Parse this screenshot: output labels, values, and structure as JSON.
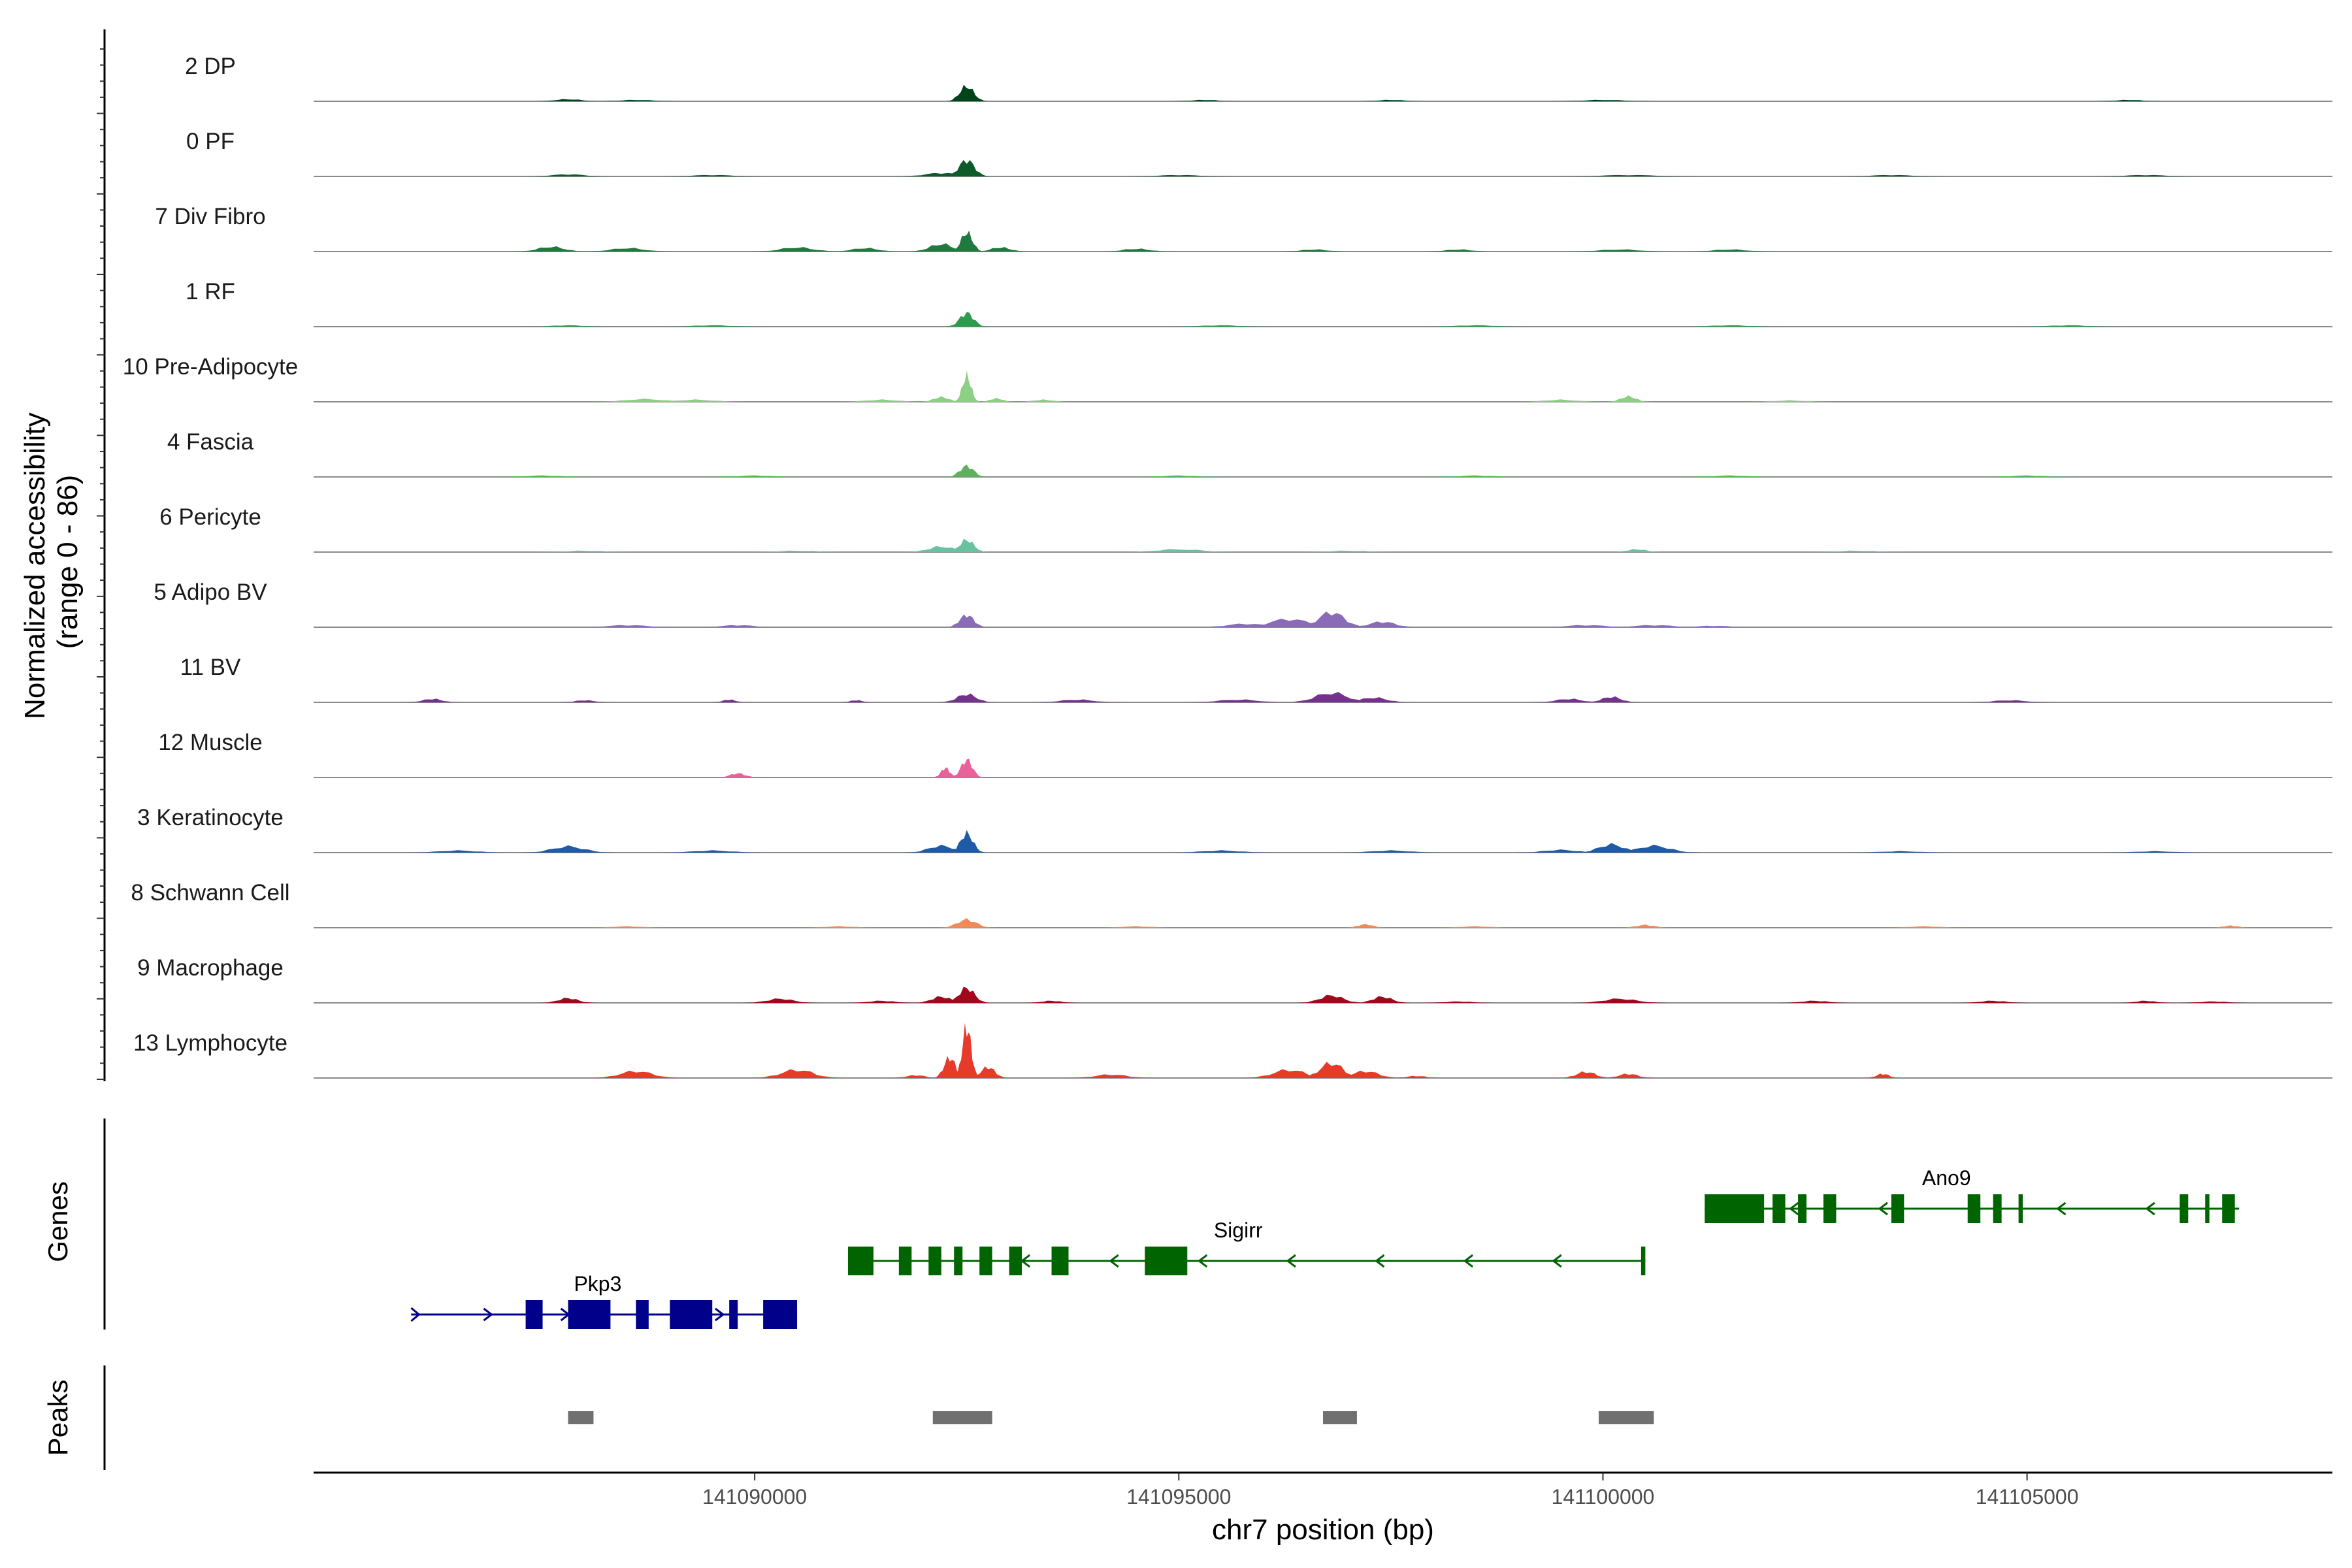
{
  "chart_data": {
    "type": "area",
    "y_title_line1": "Normalized accessibility",
    "y_title_line2": "(range 0 - 86)",
    "ylim": [
      0,
      86
    ],
    "xlabel": "chr7 position (bp)",
    "xlim": [
      141084800,
      141108600
    ],
    "x_ticks": [
      141090000,
      141095000,
      141100000,
      141105000
    ],
    "x_tick_labels": [
      "141090000",
      "141095000",
      "141100000",
      "141105000"
    ],
    "tracks": [
      {
        "label": "2 DP",
        "color": "#00441b",
        "peaks": [
          [
            141092500,
            22,
            110
          ],
          [
            141087800,
            3,
            200
          ],
          [
            141088600,
            2,
            250
          ],
          [
            141095300,
            2,
            200
          ],
          [
            141097500,
            2,
            200
          ],
          [
            141100000,
            2,
            300
          ],
          [
            141106200,
            2,
            200
          ]
        ]
      },
      {
        "label": "0 PF",
        "color": "#0b5c2a",
        "peaks": [
          [
            141092500,
            24,
            120
          ],
          [
            141092200,
            5,
            250
          ],
          [
            141087800,
            3,
            250
          ],
          [
            141089500,
            2,
            300
          ],
          [
            141095000,
            2,
            300
          ],
          [
            141100300,
            2,
            400
          ],
          [
            141103400,
            2,
            300
          ],
          [
            141106400,
            2,
            300
          ]
        ]
      },
      {
        "label": "7 Div Fibro",
        "color": "#1e7b3d",
        "peaks": [
          [
            141092500,
            28,
            90
          ],
          [
            141092200,
            11,
            180
          ],
          [
            141092900,
            6,
            150
          ],
          [
            141087600,
            7,
            200
          ],
          [
            141088500,
            5,
            250
          ],
          [
            141090500,
            6,
            250
          ],
          [
            141091300,
            5,
            200
          ],
          [
            141094500,
            4,
            200
          ],
          [
            141096600,
            3,
            200
          ],
          [
            141098300,
            3,
            200
          ],
          [
            141100200,
            3,
            300
          ],
          [
            141101500,
            3,
            250
          ]
        ]
      },
      {
        "label": "1 RF",
        "color": "#2f9a4c",
        "peaks": [
          [
            141092500,
            20,
            110
          ],
          [
            141087800,
            2,
            250
          ],
          [
            141089500,
            2,
            300
          ],
          [
            141095500,
            2,
            300
          ],
          [
            141098500,
            2,
            300
          ],
          [
            141101500,
            2,
            300
          ],
          [
            141105500,
            2,
            300
          ]
        ]
      },
      {
        "label": "10 Pre-Adipocyte",
        "color": "#8dcf85",
        "peaks": [
          [
            141092500,
            38,
            70
          ],
          [
            141092200,
            7,
            120
          ],
          [
            141092850,
            5,
            100
          ],
          [
            141088700,
            4,
            300
          ],
          [
            141089300,
            3,
            300
          ],
          [
            141091500,
            3,
            250
          ],
          [
            141093400,
            3,
            150
          ],
          [
            141100300,
            8,
            120
          ],
          [
            141099500,
            3,
            250
          ],
          [
            141102200,
            2,
            250
          ]
        ]
      },
      {
        "label": "4 Fascia",
        "color": "#5fb05e",
        "peaks": [
          [
            141092500,
            16,
            110
          ],
          [
            141087500,
            2,
            300
          ],
          [
            141090000,
            2,
            300
          ],
          [
            141095000,
            2,
            300
          ],
          [
            141098500,
            2,
            300
          ],
          [
            141101500,
            2,
            300
          ],
          [
            141105000,
            2,
            300
          ]
        ]
      },
      {
        "label": "6 Pericyte",
        "color": "#67c2a0",
        "peaks": [
          [
            141092500,
            18,
            110
          ],
          [
            141092200,
            8,
            200
          ],
          [
            141095000,
            4,
            350
          ],
          [
            141088000,
            2,
            300
          ],
          [
            141090500,
            2,
            300
          ],
          [
            141097000,
            2,
            300
          ],
          [
            141100400,
            4,
            150
          ],
          [
            141103000,
            2,
            300
          ]
        ]
      },
      {
        "label": "5 Adipo BV",
        "color": "#8a6bb8",
        "peaks": [
          [
            141092500,
            18,
            110
          ],
          [
            141096800,
            22,
            200
          ],
          [
            141096300,
            12,
            300
          ],
          [
            141097400,
            8,
            200
          ],
          [
            141095800,
            5,
            300
          ],
          [
            141088500,
            3,
            300
          ],
          [
            141089800,
            3,
            250
          ],
          [
            141099800,
            3,
            300
          ],
          [
            141100600,
            3,
            300
          ],
          [
            141101300,
            2,
            250
          ]
        ]
      },
      {
        "label": "11 BV",
        "color": "#74328e",
        "peaks": [
          [
            141092500,
            12,
            150
          ],
          [
            141096800,
            14,
            250
          ],
          [
            141097300,
            7,
            200
          ],
          [
            141086200,
            5,
            150
          ],
          [
            141088000,
            3,
            150
          ],
          [
            141089700,
            4,
            100
          ],
          [
            141091200,
            3,
            100
          ],
          [
            141093800,
            4,
            250
          ],
          [
            141095700,
            4,
            300
          ],
          [
            141100100,
            8,
            150
          ],
          [
            141099600,
            5,
            200
          ],
          [
            141104800,
            3,
            250
          ]
        ]
      },
      {
        "label": "12 Muscle",
        "color": "#e9619b",
        "peaks": [
          [
            141092500,
            26,
            90
          ],
          [
            141092250,
            14,
            70
          ],
          [
            141089800,
            6,
            120
          ]
        ]
      },
      {
        "label": "3 Keratinocyte",
        "color": "#1f5aa6",
        "peaks": [
          [
            141092500,
            28,
            100
          ],
          [
            141092200,
            10,
            200
          ],
          [
            141087800,
            9,
            250
          ],
          [
            141100100,
            12,
            200
          ],
          [
            141100600,
            10,
            250
          ],
          [
            141099500,
            4,
            250
          ],
          [
            141086500,
            3,
            300
          ],
          [
            141089500,
            3,
            300
          ],
          [
            141095500,
            3,
            300
          ],
          [
            141097500,
            3,
            300
          ],
          [
            141103500,
            2,
            300
          ],
          [
            141106500,
            2,
            300
          ]
        ]
      },
      {
        "label": "8 Schwann Cell",
        "color": "#f08a58",
        "peaks": [
          [
            141092500,
            12,
            150
          ],
          [
            141097200,
            5,
            120
          ],
          [
            141100500,
            4,
            150
          ],
          [
            141088500,
            2,
            250
          ],
          [
            141091000,
            2,
            250
          ],
          [
            141094500,
            2,
            250
          ],
          [
            141098500,
            2,
            250
          ],
          [
            141103800,
            2,
            250
          ],
          [
            141107400,
            3,
            120
          ]
        ]
      },
      {
        "label": "9 Macrophage",
        "color": "#a1081c",
        "peaks": [
          [
            141092500,
            22,
            120
          ],
          [
            141092200,
            9,
            150
          ],
          [
            141096800,
            11,
            180
          ],
          [
            141097400,
            9,
            150
          ],
          [
            141087800,
            7,
            150
          ],
          [
            141090300,
            6,
            200
          ],
          [
            141091500,
            3,
            200
          ],
          [
            141093500,
            3,
            150
          ],
          [
            141100200,
            6,
            250
          ],
          [
            141098300,
            2,
            200
          ],
          [
            141102500,
            3,
            200
          ],
          [
            141104600,
            3,
            200
          ],
          [
            141106400,
            3,
            150
          ],
          [
            141107200,
            2,
            200
          ]
        ]
      },
      {
        "label": "13 Lymphocyte",
        "color": "#e83a2b",
        "peaks": [
          [
            141092500,
            75,
            70
          ],
          [
            141092300,
            30,
            90
          ],
          [
            141092750,
            16,
            110
          ],
          [
            141096800,
            22,
            180
          ],
          [
            141096300,
            12,
            250
          ],
          [
            141097200,
            10,
            200
          ],
          [
            141088600,
            10,
            250
          ],
          [
            141090500,
            12,
            250
          ],
          [
            141091900,
            4,
            150
          ],
          [
            141094200,
            5,
            250
          ],
          [
            141099800,
            9,
            150
          ],
          [
            141100300,
            6,
            150
          ],
          [
            141103300,
            6,
            100
          ],
          [
            141097800,
            3,
            150
          ]
        ]
      }
    ],
    "genes_title": "Genes",
    "genes": [
      {
        "name": "Pkp3",
        "strand": "+",
        "color": "#00008b",
        "start": 141085950,
        "end": 141090500,
        "exons": [
          [
            141087300,
            141087500
          ],
          [
            141087800,
            141088300
          ],
          [
            141088600,
            141088750
          ],
          [
            141089000,
            141089500
          ],
          [
            141089700,
            141089800
          ],
          [
            141090100,
            141090500
          ]
        ]
      },
      {
        "name": "Sigirr",
        "strand": "-",
        "color": "#006400",
        "start": 141091100,
        "end": 141100500,
        "exons": [
          [
            141091100,
            141091400
          ],
          [
            141091700,
            141091850
          ],
          [
            141092050,
            141092200
          ],
          [
            141092350,
            141092450
          ],
          [
            141092650,
            141092800
          ],
          [
            141093000,
            141093150
          ],
          [
            141093500,
            141093700
          ],
          [
            141094600,
            141095100
          ],
          [
            141100450,
            141100500
          ]
        ]
      },
      {
        "name": "Ano9",
        "strand": "-",
        "color": "#006400",
        "start": 141101200,
        "end": 141107500,
        "exons": [
          [
            141101200,
            141101900
          ],
          [
            141102000,
            141102150
          ],
          [
            141102300,
            141102400
          ],
          [
            141102600,
            141102750
          ],
          [
            141103400,
            141103550
          ],
          [
            141104300,
            141104450
          ],
          [
            141104600,
            141104700
          ],
          [
            141104900,
            141104950
          ],
          [
            141106800,
            141106900
          ],
          [
            141107100,
            141107150
          ],
          [
            141107300,
            141107450
          ]
        ]
      }
    ],
    "peaks_title": "Peaks",
    "peak_regions": [
      [
        141087800,
        141088100
      ],
      [
        141092100,
        141092800
      ],
      [
        141096700,
        141097100
      ],
      [
        141099950,
        141100600
      ]
    ],
    "peak_color": "#707070"
  }
}
